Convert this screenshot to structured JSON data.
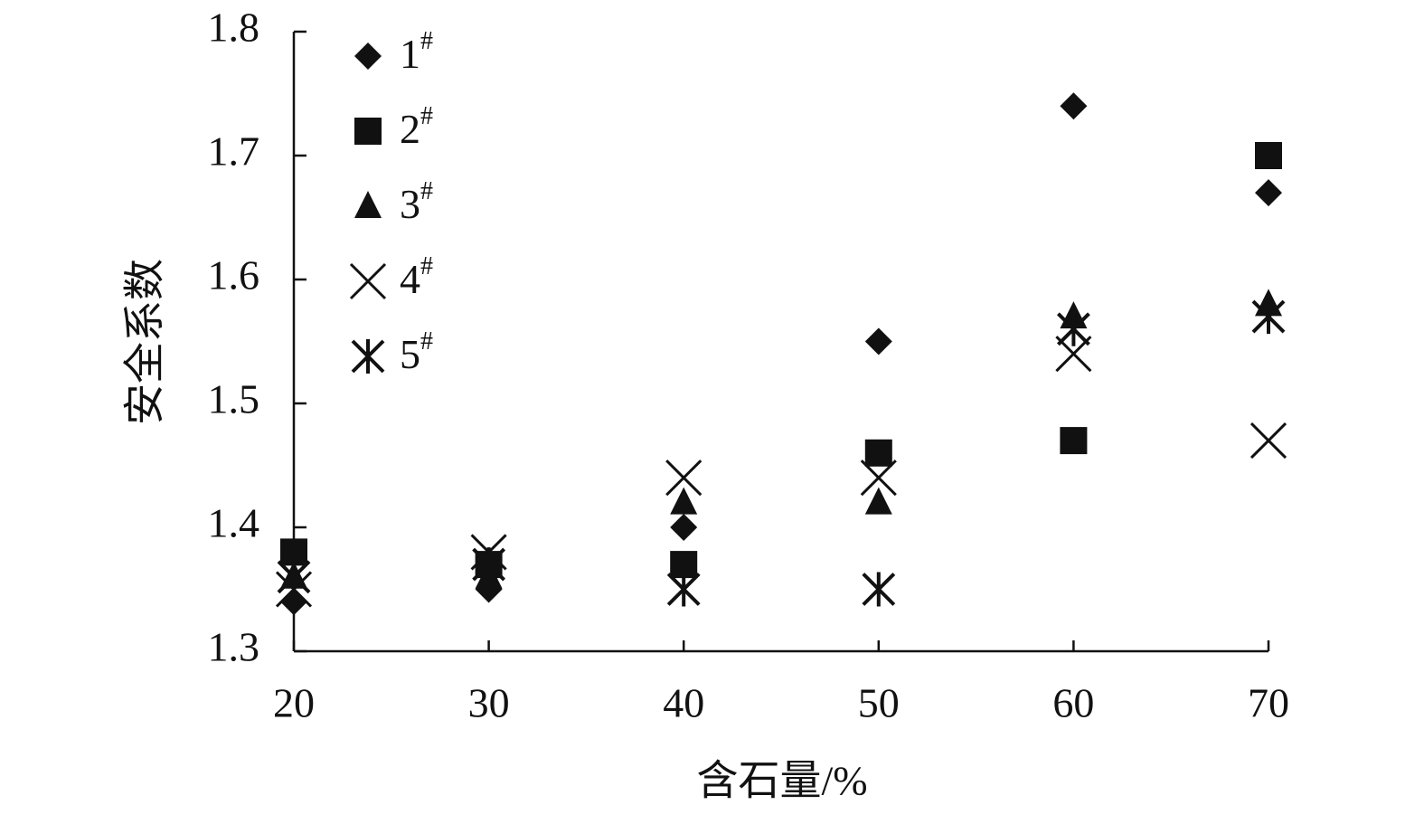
{
  "chart_data": {
    "type": "scatter",
    "x_label": "含石量/%",
    "y_label": "安全系数",
    "xlim": [
      20,
      70
    ],
    "xticks": [
      20,
      30,
      40,
      50,
      60,
      70
    ],
    "ylim": [
      1.3,
      1.8
    ],
    "yticks": [
      1.3,
      1.4,
      1.5,
      1.6,
      1.7,
      1.8
    ],
    "legend": "upper left",
    "series": [
      {
        "name": "1#",
        "marker": "diamond",
        "color": "#111111",
        "x": [
          20,
          30,
          40,
          50,
          60,
          70
        ],
        "values": [
          1.34,
          1.35,
          1.4,
          1.55,
          1.74,
          1.67
        ]
      },
      {
        "name": "2#",
        "marker": "square",
        "color": "#111111",
        "x": [
          20,
          30,
          40,
          50,
          60,
          70
        ],
        "values": [
          1.38,
          1.37,
          1.37,
          1.46,
          1.47,
          1.7
        ]
      },
      {
        "name": "3#",
        "marker": "triangle",
        "color": "#111111",
        "x": [
          20,
          30,
          40,
          50,
          60,
          70
        ],
        "values": [
          1.36,
          1.36,
          1.42,
          1.42,
          1.57,
          1.58
        ]
      },
      {
        "name": "4#",
        "marker": "x",
        "color": "#111111",
        "x": [
          20,
          30,
          40,
          50,
          60,
          70
        ],
        "values": [
          1.35,
          1.38,
          1.44,
          1.44,
          1.54,
          1.47
        ]
      },
      {
        "name": "5#",
        "marker": "asterisk",
        "color": "#111111",
        "x": [
          20,
          30,
          40,
          50,
          60,
          70
        ],
        "values": [
          1.36,
          1.37,
          1.35,
          1.35,
          1.56,
          1.57
        ]
      }
    ]
  }
}
